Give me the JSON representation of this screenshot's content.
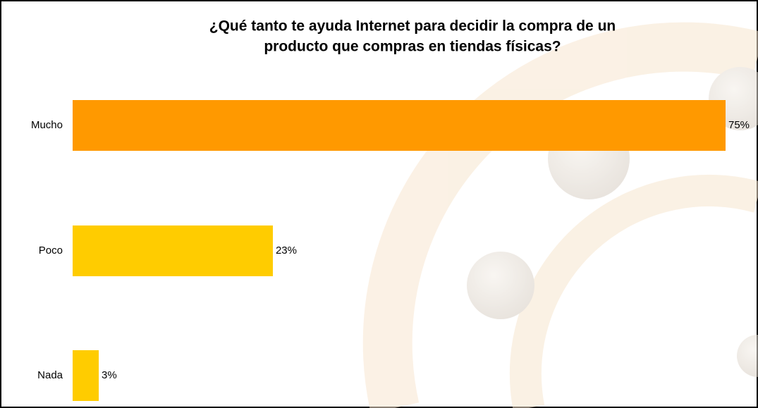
{
  "chart_data": {
    "type": "hbar",
    "title": [
      "¿Qué tanto te ayuda Internet para decidir la compra de un",
      "producto que compras en tiendas físicas?"
    ],
    "categories": [
      "Mucho",
      "Poco",
      "Nada"
    ],
    "values": [
      75,
      23,
      3
    ],
    "value_labels": [
      "75%",
      "23%",
      "3%"
    ],
    "colors": [
      "#ff9900",
      "#ffcc00",
      "#ffcc00"
    ]
  }
}
